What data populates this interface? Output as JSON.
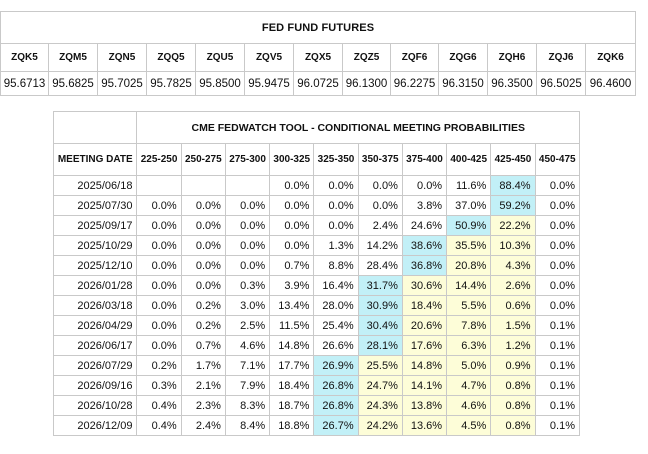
{
  "futures": {
    "title": "FED FUND FUTURES",
    "codes": [
      "ZQK5",
      "ZQM5",
      "ZQN5",
      "ZQQ5",
      "ZQU5",
      "ZQV5",
      "ZQX5",
      "ZQZ5",
      "ZQF6",
      "ZQG6",
      "ZQH6",
      "ZQJ6",
      "ZQK6"
    ],
    "prices": [
      "95.6713",
      "95.6825",
      "95.7025",
      "95.7825",
      "95.8500",
      "95.9475",
      "96.0725",
      "96.1300",
      "96.2275",
      "96.3150",
      "96.3500",
      "96.5025",
      "96.4600"
    ]
  },
  "fedwatch": {
    "title": "CME FEDWATCH TOOL - CONDITIONAL MEETING PROBABILITIES",
    "date_header": "MEETING DATE",
    "ranges": [
      "225-250",
      "250-275",
      "275-300",
      "300-325",
      "325-350",
      "350-375",
      "375-400",
      "400-425",
      "425-450",
      "450-475"
    ],
    "highlight_colors": {
      "max": "#c2f0f7",
      "near_max": "#fdfdd8"
    },
    "rows": [
      {
        "date": "2025/06/18",
        "values": [
          "",
          "",
          "",
          "0.0%",
          "0.0%",
          "0.0%",
          "0.0%",
          "11.6%",
          "88.4%",
          "0.0%"
        ],
        "hl": [
          "",
          "",
          "",
          "",
          "",
          "",
          "",
          "",
          "b",
          ""
        ]
      },
      {
        "date": "2025/07/30",
        "values": [
          "0.0%",
          "0.0%",
          "0.0%",
          "0.0%",
          "0.0%",
          "0.0%",
          "3.8%",
          "37.0%",
          "59.2%",
          "0.0%"
        ],
        "hl": [
          "",
          "",
          "",
          "",
          "",
          "",
          "",
          "",
          "b",
          ""
        ]
      },
      {
        "date": "2025/09/17",
        "values": [
          "0.0%",
          "0.0%",
          "0.0%",
          "0.0%",
          "0.0%",
          "2.4%",
          "24.6%",
          "50.9%",
          "22.2%",
          "0.0%"
        ],
        "hl": [
          "",
          "",
          "",
          "",
          "",
          "",
          "",
          "b",
          "y",
          ""
        ]
      },
      {
        "date": "2025/10/29",
        "values": [
          "0.0%",
          "0.0%",
          "0.0%",
          "0.0%",
          "1.3%",
          "14.2%",
          "38.6%",
          "35.5%",
          "10.3%",
          "0.0%"
        ],
        "hl": [
          "",
          "",
          "",
          "",
          "",
          "",
          "b",
          "y",
          "y",
          ""
        ]
      },
      {
        "date": "2025/12/10",
        "values": [
          "0.0%",
          "0.0%",
          "0.0%",
          "0.7%",
          "8.8%",
          "28.4%",
          "36.8%",
          "20.8%",
          "4.3%",
          "0.0%"
        ],
        "hl": [
          "",
          "",
          "",
          "",
          "",
          "",
          "b",
          "y",
          "y",
          ""
        ]
      },
      {
        "date": "2026/01/28",
        "values": [
          "0.0%",
          "0.0%",
          "0.3%",
          "3.9%",
          "16.4%",
          "31.7%",
          "30.6%",
          "14.4%",
          "2.6%",
          "0.0%"
        ],
        "hl": [
          "",
          "",
          "",
          "",
          "",
          "b",
          "y",
          "y",
          "y",
          ""
        ]
      },
      {
        "date": "2026/03/18",
        "values": [
          "0.0%",
          "0.2%",
          "3.0%",
          "13.4%",
          "28.0%",
          "30.9%",
          "18.4%",
          "5.5%",
          "0.6%",
          "0.0%"
        ],
        "hl": [
          "",
          "",
          "",
          "",
          "",
          "b",
          "y",
          "y",
          "y",
          ""
        ]
      },
      {
        "date": "2026/04/29",
        "values": [
          "0.0%",
          "0.2%",
          "2.5%",
          "11.5%",
          "25.4%",
          "30.4%",
          "20.6%",
          "7.8%",
          "1.5%",
          "0.1%"
        ],
        "hl": [
          "",
          "",
          "",
          "",
          "",
          "b",
          "y",
          "y",
          "y",
          ""
        ]
      },
      {
        "date": "2026/06/17",
        "values": [
          "0.0%",
          "0.7%",
          "4.6%",
          "14.8%",
          "26.6%",
          "28.1%",
          "17.6%",
          "6.3%",
          "1.2%",
          "0.1%"
        ],
        "hl": [
          "",
          "",
          "",
          "",
          "",
          "b",
          "y",
          "y",
          "y",
          ""
        ]
      },
      {
        "date": "2026/07/29",
        "values": [
          "0.2%",
          "1.7%",
          "7.1%",
          "17.7%",
          "26.9%",
          "25.5%",
          "14.8%",
          "5.0%",
          "0.9%",
          "0.1%"
        ],
        "hl": [
          "",
          "",
          "",
          "",
          "b",
          "y",
          "y",
          "y",
          "y",
          ""
        ]
      },
      {
        "date": "2026/09/16",
        "values": [
          "0.3%",
          "2.1%",
          "7.9%",
          "18.4%",
          "26.8%",
          "24.7%",
          "14.1%",
          "4.7%",
          "0.8%",
          "0.1%"
        ],
        "hl": [
          "",
          "",
          "",
          "",
          "b",
          "y",
          "y",
          "y",
          "y",
          ""
        ]
      },
      {
        "date": "2026/10/28",
        "values": [
          "0.4%",
          "2.3%",
          "8.3%",
          "18.7%",
          "26.8%",
          "24.3%",
          "13.8%",
          "4.6%",
          "0.8%",
          "0.1%"
        ],
        "hl": [
          "",
          "",
          "",
          "",
          "b",
          "y",
          "y",
          "y",
          "y",
          ""
        ]
      },
      {
        "date": "2026/12/09",
        "values": [
          "0.4%",
          "2.4%",
          "8.4%",
          "18.8%",
          "26.7%",
          "24.2%",
          "13.6%",
          "4.5%",
          "0.8%",
          "0.1%"
        ],
        "hl": [
          "",
          "",
          "",
          "",
          "b",
          "y",
          "y",
          "y",
          "y",
          ""
        ]
      }
    ]
  }
}
